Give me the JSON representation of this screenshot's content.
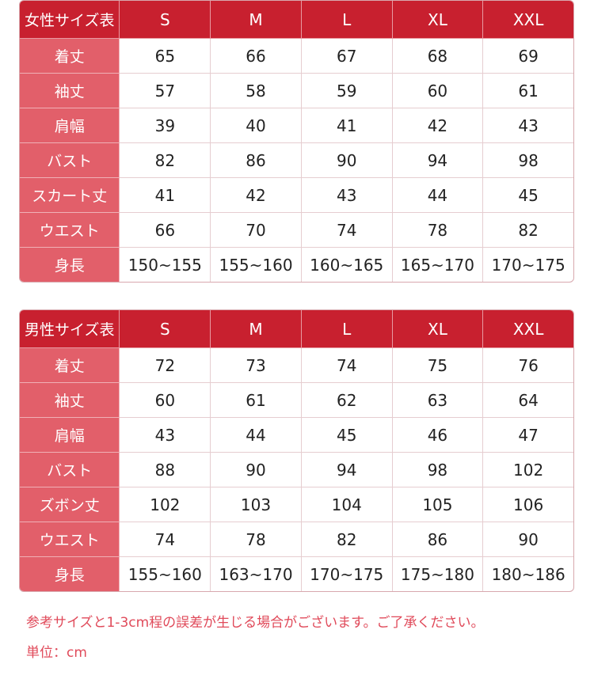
{
  "colors": {
    "header": "#c8202f",
    "label_column": "#e25f6a",
    "note_text": "#e04a5a"
  },
  "sizes": [
    "S",
    "M",
    "L",
    "XL",
    "XXL"
  ],
  "women": {
    "title": "女性サイズ表",
    "rows": [
      {
        "label": "着丈",
        "values": [
          "65",
          "66",
          "67",
          "68",
          "69"
        ]
      },
      {
        "label": "袖丈",
        "values": [
          "57",
          "58",
          "59",
          "60",
          "61"
        ]
      },
      {
        "label": "肩幅",
        "values": [
          "39",
          "40",
          "41",
          "42",
          "43"
        ]
      },
      {
        "label": "バスト",
        "values": [
          "82",
          "86",
          "90",
          "94",
          "98"
        ]
      },
      {
        "label": "スカート丈",
        "values": [
          "41",
          "42",
          "43",
          "44",
          "45"
        ]
      },
      {
        "label": "ウエスト",
        "values": [
          "66",
          "70",
          "74",
          "78",
          "82"
        ]
      },
      {
        "label": "身長",
        "values": [
          "150~155",
          "155~160",
          "160~165",
          "165~170",
          "170~175"
        ]
      }
    ]
  },
  "men": {
    "title": "男性サイズ表",
    "rows": [
      {
        "label": "着丈",
        "values": [
          "72",
          "73",
          "74",
          "75",
          "76"
        ]
      },
      {
        "label": "袖丈",
        "values": [
          "60",
          "61",
          "62",
          "63",
          "64"
        ]
      },
      {
        "label": "肩幅",
        "values": [
          "43",
          "44",
          "45",
          "46",
          "47"
        ]
      },
      {
        "label": "バスト",
        "values": [
          "88",
          "90",
          "94",
          "98",
          "102"
        ]
      },
      {
        "label": "ズボン丈",
        "values": [
          "102",
          "103",
          "104",
          "105",
          "106"
        ]
      },
      {
        "label": "ウエスト",
        "values": [
          "74",
          "78",
          "82",
          "86",
          "90"
        ]
      },
      {
        "label": "身長",
        "values": [
          "155~160",
          "163~170",
          "170~175",
          "175~180",
          "180~186"
        ]
      }
    ]
  },
  "notes": {
    "tolerance": "参考サイズと1-3cm程の誤差が生じる場合がございます。ご了承ください。",
    "unit": "単位：cm"
  }
}
